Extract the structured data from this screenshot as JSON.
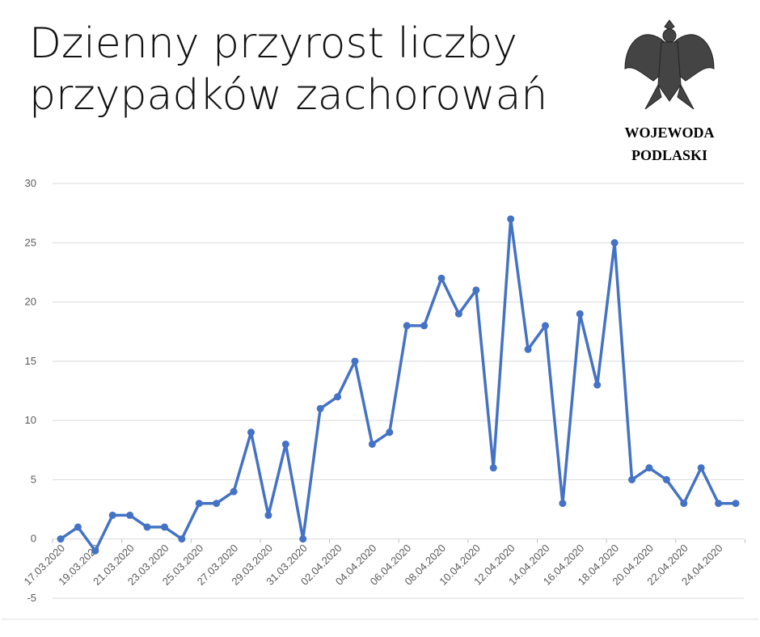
{
  "chart_data": {
    "type": "line",
    "title": "Dzienny przyrost liczby przypadków zachorowań",
    "logo_lines": [
      "WOJEWODA",
      "PODLASKI"
    ],
    "categories": [
      "17.03.2020",
      null,
      "19.03.2020",
      null,
      "21.03.2020",
      null,
      "23.03.2020",
      null,
      "25.03.2020",
      null,
      "27.03.2020",
      null,
      "29.03.2020",
      null,
      "31.03.2020",
      null,
      "02.04.2020",
      null,
      "04.04.2020",
      null,
      "06.04.2020",
      null,
      "08.04.2020",
      null,
      "10.04.2020",
      null,
      "12.04.2020",
      null,
      "14.04.2020",
      null,
      "16.04.2020",
      null,
      "18.04.2020",
      null,
      "20.04.2020",
      null,
      "22.04.2020",
      null,
      "24.04.2020",
      null
    ],
    "values": [
      0,
      1,
      -1,
      2,
      2,
      1,
      1,
      0,
      3,
      3,
      4,
      9,
      2,
      8,
      0,
      11,
      12,
      15,
      8,
      9,
      18,
      18,
      22,
      19,
      21,
      6,
      27,
      16,
      18,
      3,
      19,
      13,
      25,
      5,
      6,
      5,
      3,
      6,
      3,
      3
    ],
    "color": "#4472c4",
    "ylim": [
      -5,
      30
    ],
    "yticks": [
      -5,
      0,
      5,
      10,
      15,
      20,
      25,
      30
    ],
    "grid": true
  }
}
